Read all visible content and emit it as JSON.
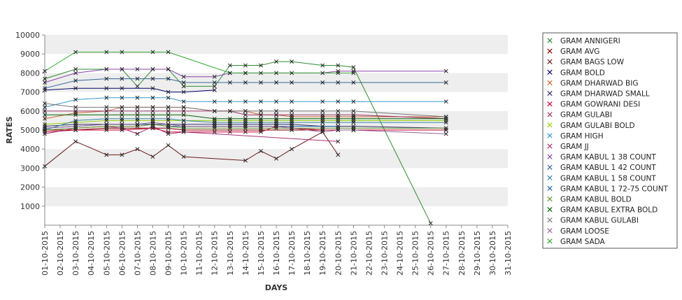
{
  "chart_data": {
    "type": "line",
    "title": "",
    "xlabel": "DAYS",
    "ylabel": "RATES",
    "ylim": [
      0,
      10000
    ],
    "yticks": [
      1000,
      2000,
      3000,
      4000,
      5000,
      6000,
      7000,
      8000,
      9000,
      10000
    ],
    "grid": "horizontal alternating bands",
    "legend_position": "right",
    "categories": [
      "01-10-2015",
      "02-10-2015",
      "03-10-2015",
      "04-10-2015",
      "05-10-2015",
      "06-10-2015",
      "07-10-2015",
      "08-10-2015",
      "09-10-2015",
      "10-10-2015",
      "11-10-2015",
      "12-10-2015",
      "13-10-2015",
      "14-10-2015",
      "15-10-2015",
      "16-10-2015",
      "17-10-2015",
      "18-10-2015",
      "19-10-2015",
      "20-10-2015",
      "21-10-2015",
      "22-10-2015",
      "23-10-2015",
      "24-10-2015",
      "25-10-2015",
      "26-10-2015",
      "27-10-2015",
      "28-10-2015",
      "29-10-2015",
      "30-10-2015",
      "31-10-2015"
    ],
    "series": [
      {
        "name": "GRAM ANNIGERI",
        "color": "#2e8b2e",
        "values": [
          7700,
          null,
          8200,
          null,
          8200,
          8200,
          7300,
          8200,
          8200,
          7300,
          null,
          7300,
          8400,
          8400,
          8400,
          8600,
          8600,
          null,
          8400,
          8400,
          8300,
          null,
          null,
          null,
          null,
          100,
          null,
          null,
          null,
          null,
          null
        ]
      },
      {
        "name": "GRAM AVG",
        "color": "#8b0000",
        "values": [
          5000,
          null,
          5000,
          null,
          5100,
          5100,
          null,
          5100,
          5100,
          5000,
          null,
          null,
          null,
          null,
          5000,
          null,
          5000,
          null,
          5000,
          5000,
          5000,
          null,
          null,
          null,
          null,
          null,
          5000,
          null,
          null,
          null,
          null
        ]
      },
      {
        "name": "GRAM BAGS LOW",
        "color": "#6b1a1a",
        "values": [
          3100,
          null,
          4400,
          null,
          3700,
          3700,
          4000,
          3600,
          4200,
          3600,
          null,
          null,
          null,
          3400,
          3900,
          3500,
          4000,
          null,
          4900,
          3700,
          null,
          null,
          null,
          null,
          null,
          null,
          null,
          null,
          null,
          null,
          null
        ]
      },
      {
        "name": "GRAM BOLD",
        "color": "#000066",
        "values": [
          7100,
          null,
          7200,
          null,
          7200,
          7200,
          null,
          7200,
          7000,
          7000,
          null,
          7100,
          null,
          null,
          null,
          null,
          null,
          null,
          null,
          null,
          null,
          null,
          null,
          null,
          null,
          null,
          null,
          null,
          null,
          null,
          null
        ]
      },
      {
        "name": "GRAM DHARWAD BIG",
        "color": "#cc6633",
        "values": [
          5600,
          null,
          5900,
          null,
          6000,
          6200,
          6200,
          6200,
          6200,
          6200,
          null,
          6000,
          6000,
          6000,
          5800,
          5800,
          5700,
          null,
          5700,
          5700,
          5700,
          null,
          null,
          null,
          null,
          null,
          5700,
          null,
          null,
          null,
          null
        ]
      },
      {
        "name": "GRAM DHARWAD SMALL",
        "color": "#333366",
        "values": [
          5200,
          null,
          5300,
          null,
          5300,
          5300,
          5300,
          5300,
          5300,
          5300,
          null,
          5300,
          5300,
          5300,
          5300,
          5300,
          5300,
          null,
          5200,
          5200,
          5200,
          null,
          null,
          null,
          null,
          null,
          5100,
          null,
          null,
          null,
          null
        ]
      },
      {
        "name": "GRAM GOWRANI DESI",
        "color": "#cc0033",
        "values": [
          4900,
          null,
          5000,
          null,
          5000,
          5000,
          null,
          5100,
          4900,
          4900,
          null,
          4900,
          4900,
          4900,
          4900,
          5200,
          5100,
          null,
          5000,
          5000,
          5000,
          null,
          null,
          null,
          null,
          null,
          5000,
          null,
          null,
          null,
          null
        ]
      },
      {
        "name": "GRAM GULABI",
        "color": "#993366",
        "values": [
          6000,
          null,
          6000,
          null,
          6000,
          6000,
          6000,
          6000,
          6000,
          6000,
          null,
          6000,
          6000,
          5800,
          5800,
          5800,
          5800,
          null,
          5800,
          5800,
          5800,
          null,
          null,
          null,
          null,
          null,
          5600,
          null,
          null,
          null,
          null
        ]
      },
      {
        "name": "GRAM GULABI BOLD",
        "color": "#99cc00",
        "values": [
          5300,
          null,
          5400,
          null,
          5500,
          5500,
          5500,
          5500,
          5500,
          5500,
          null,
          5500,
          5500,
          5500,
          5500,
          5500,
          5500,
          null,
          5500,
          5500,
          5500,
          null,
          null,
          null,
          null,
          null,
          5500,
          null,
          null,
          null,
          null
        ]
      },
      {
        "name": "GRAM HIGH",
        "color": "#3399cc",
        "values": [
          6200,
          null,
          6600,
          null,
          6700,
          6700,
          6700,
          6700,
          6700,
          6500,
          null,
          6500,
          6500,
          6500,
          6500,
          6500,
          6500,
          null,
          6500,
          6500,
          6500,
          null,
          null,
          null,
          null,
          null,
          6500,
          null,
          null,
          null,
          null
        ]
      },
      {
        "name": "GRAM JJ",
        "color": "#aa3377",
        "values": [
          4800,
          null,
          5100,
          null,
          5200,
          5100,
          4800,
          5200,
          4800,
          4900,
          null,
          null,
          null,
          null,
          null,
          null,
          null,
          null,
          null,
          4400,
          null,
          null,
          null,
          null,
          null,
          null,
          null,
          null,
          null,
          null,
          null
        ]
      },
      {
        "name": "GRAM KABUL 1 38 COUNT",
        "color": "#8844aa",
        "values": [
          7500,
          null,
          8000,
          null,
          8200,
          8200,
          8200,
          8200,
          8200,
          7800,
          null,
          7800,
          8000,
          8000,
          8000,
          8000,
          8000,
          null,
          8000,
          8100,
          8100,
          null,
          null,
          null,
          null,
          null,
          8100,
          null,
          null,
          null,
          null
        ]
      },
      {
        "name": "GRAM KABUL 1 42 COUNT",
        "color": "#336699",
        "values": [
          7200,
          null,
          7600,
          null,
          7700,
          7700,
          7700,
          7700,
          7700,
          7500,
          null,
          7500,
          7500,
          7500,
          7500,
          7500,
          7500,
          null,
          7500,
          7500,
          7500,
          null,
          null,
          null,
          null,
          null,
          7500,
          null,
          null,
          null,
          null
        ]
      },
      {
        "name": "GRAM KABUL 1 58 COUNT",
        "color": "#3388aa",
        "values": [
          5000,
          null,
          5500,
          null,
          5600,
          5600,
          5600,
          5600,
          5600,
          5500,
          null,
          5400,
          5400,
          5400,
          5400,
          5400,
          5400,
          null,
          5400,
          5400,
          5400,
          null,
          null,
          null,
          null,
          null,
          5400,
          null,
          null,
          null,
          null
        ]
      },
      {
        "name": "GRAM KABUL 1 72-75 COUNT",
        "color": "#2266aa",
        "values": [
          5100,
          null,
          5200,
          null,
          5300,
          5300,
          5300,
          5300,
          5200,
          5200,
          null,
          5200,
          5200,
          5200,
          5200,
          5200,
          5200,
          null,
          5200,
          5200,
          null,
          null,
          null,
          null,
          null,
          null,
          null,
          null,
          null,
          null,
          null
        ]
      },
      {
        "name": "GRAM KABUL BOLD",
        "color": "#669933",
        "values": [
          5000,
          null,
          5100,
          null,
          5200,
          5200,
          5200,
          5300,
          5200,
          5100,
          null,
          5100,
          5100,
          5100,
          5100,
          5100,
          5100,
          null,
          5100,
          5100,
          5100,
          null,
          null,
          null,
          null,
          null,
          5100,
          null,
          null,
          null,
          null
        ]
      },
      {
        "name": "GRAM KABUL EXTRA BOLD",
        "color": "#006600",
        "values": [
          5800,
          null,
          5800,
          null,
          5800,
          5800,
          5800,
          5800,
          5800,
          5800,
          null,
          5600,
          5600,
          5600,
          5600,
          5600,
          5600,
          null,
          5600,
          5600,
          5600,
          null,
          null,
          null,
          null,
          null,
          5600,
          null,
          null,
          null,
          null
        ]
      },
      {
        "name": "GRAM KABUL GULABI",
        "color": "#777777",
        "values": [
          6400,
          null,
          6200,
          null,
          6200,
          6200,
          6200,
          6200,
          6200,
          6200,
          null,
          6000,
          6000,
          6000,
          6000,
          6000,
          6000,
          null,
          6000,
          6000,
          6000,
          null,
          null,
          null,
          null,
          null,
          5700,
          null,
          null,
          null,
          null
        ]
      },
      {
        "name": "GRAM LOOSE",
        "color": "#996699",
        "values": [
          5100,
          null,
          5200,
          null,
          5300,
          5300,
          5300,
          5400,
          5300,
          5200,
          null,
          5200,
          5200,
          5200,
          5200,
          5200,
          5100,
          null,
          4900,
          5000,
          5000,
          null,
          null,
          null,
          null,
          null,
          4800,
          null,
          null,
          null,
          null
        ]
      },
      {
        "name": "GRAM SADA",
        "color": "#33aa33",
        "values": [
          8100,
          null,
          9100,
          null,
          9100,
          9100,
          null,
          9100,
          9100,
          null,
          null,
          null,
          8000,
          8000,
          null,
          null,
          null,
          null,
          null,
          8000,
          8000,
          null,
          null,
          null,
          null,
          null,
          null,
          null,
          null,
          null,
          null
        ]
      }
    ]
  }
}
